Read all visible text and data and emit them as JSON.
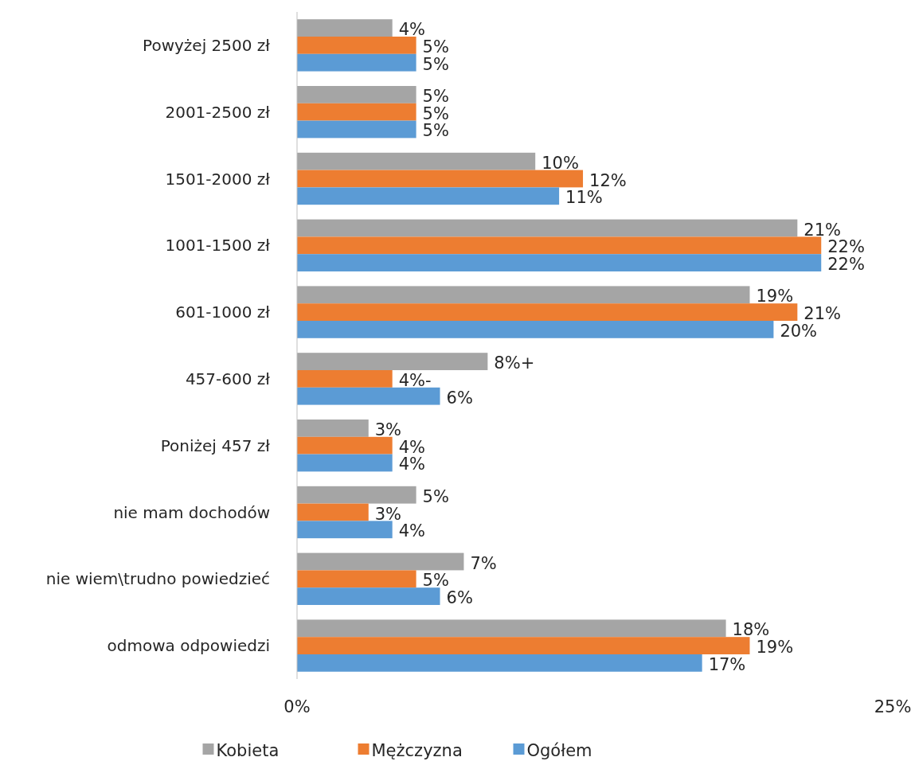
{
  "chart_data": {
    "type": "bar",
    "orientation": "horizontal",
    "categories": [
      "Powyżej 2500 zł",
      "2001-2500 zł",
      "1501-2000 zł",
      "1001-1500 zł",
      "601-1000 zł",
      "457-600 zł",
      "Poniżej 457 zł",
      "nie mam dochodów",
      "nie wiem\\trudno powiedzieć",
      "odmowa odpowiedzi"
    ],
    "series": [
      {
        "name": "Kobieta",
        "color": "#a5a5a5",
        "values": [
          4,
          5,
          10,
          21,
          19,
          8,
          3,
          5,
          7,
          18
        ],
        "value_labels": [
          "4%",
          "5%",
          "10%",
          "21%",
          "19%",
          "8%+",
          "3%",
          "5%",
          "7%",
          "18%"
        ]
      },
      {
        "name": "Mężczyzna",
        "color": "#ed7d31",
        "values": [
          5,
          5,
          12,
          22,
          21,
          4,
          4,
          3,
          5,
          19
        ],
        "value_labels": [
          "5%",
          "5%",
          "12%",
          "22%",
          "21%",
          "4%-",
          "4%",
          "3%",
          "5%",
          "19%"
        ]
      },
      {
        "name": "Ogółem",
        "color": "#5b9bd5",
        "values": [
          5,
          5,
          11,
          22,
          20,
          6,
          4,
          4,
          6,
          17
        ],
        "value_labels": [
          "5%",
          "5%",
          "11%",
          "22%",
          "20%",
          "6%",
          "4%",
          "4%",
          "6%",
          "17%"
        ]
      }
    ],
    "xlim": [
      0,
      25
    ],
    "xticks": [
      {
        "value": 0,
        "label": "0%"
      },
      {
        "value": 25,
        "label": "25%"
      }
    ],
    "legend": "bottom",
    "grid": false
  }
}
